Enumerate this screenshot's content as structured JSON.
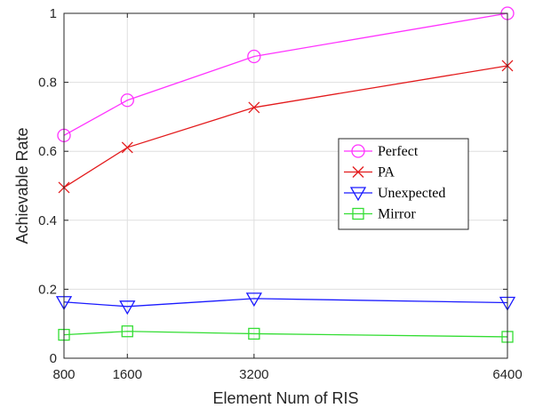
{
  "chart_data": {
    "type": "line",
    "xlabel": "Element Num of RIS",
    "ylabel": "Achievable Rate",
    "x": [
      800,
      1600,
      3200,
      6400
    ],
    "xticks": [
      800,
      1600,
      3200,
      6400
    ],
    "yticks": [
      0,
      0.2,
      0.4,
      0.6,
      0.8,
      1
    ],
    "ytick_labels": [
      "0",
      "0.2",
      "0.4",
      "0.6",
      "0.8",
      "1"
    ],
    "xlim": [
      800,
      6400
    ],
    "ylim": [
      0,
      1
    ],
    "grid": true,
    "legend_position": "center-right",
    "series": [
      {
        "name": "Perfect",
        "values": [
          0.646,
          0.748,
          0.875,
          1.0
        ],
        "color": "#ff33ff",
        "marker": "circle"
      },
      {
        "name": "PA",
        "values": [
          0.495,
          0.611,
          0.727,
          0.848
        ],
        "color": "#e31a1c",
        "marker": "x"
      },
      {
        "name": "Unexpected",
        "values": [
          0.163,
          0.15,
          0.173,
          0.161
        ],
        "color": "#1a1aff",
        "marker": "triangle-down"
      },
      {
        "name": "Mirror",
        "values": [
          0.068,
          0.078,
          0.071,
          0.062
        ],
        "color": "#33dd33",
        "marker": "square"
      }
    ]
  }
}
